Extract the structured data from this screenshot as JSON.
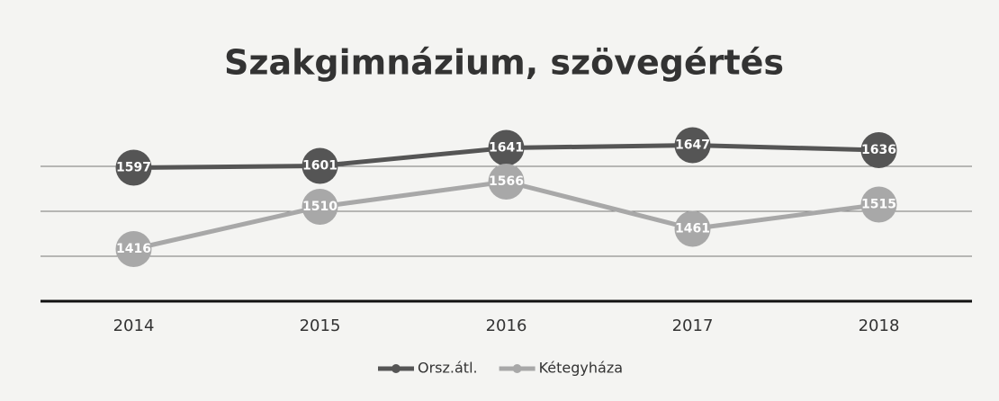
{
  "chart_data": {
    "type": "line",
    "title": "Szakgimnázium,  szövegértés",
    "categories": [
      "2014",
      "2015",
      "2016",
      "2017",
      "2018"
    ],
    "series": [
      {
        "name": "Orsz.átl.",
        "color": "#555555",
        "values": [
          1597,
          1601,
          1641,
          1647,
          1636
        ]
      },
      {
        "name": "Kétegyháza",
        "color": "#a8a8a8",
        "values": [
          1416,
          1510,
          1566,
          1461,
          1515
        ]
      }
    ],
    "ylim": [
      1300,
      1700
    ],
    "yticks": [
      1300,
      1400,
      1500,
      1600
    ],
    "grid": true,
    "legend": "bottom"
  }
}
